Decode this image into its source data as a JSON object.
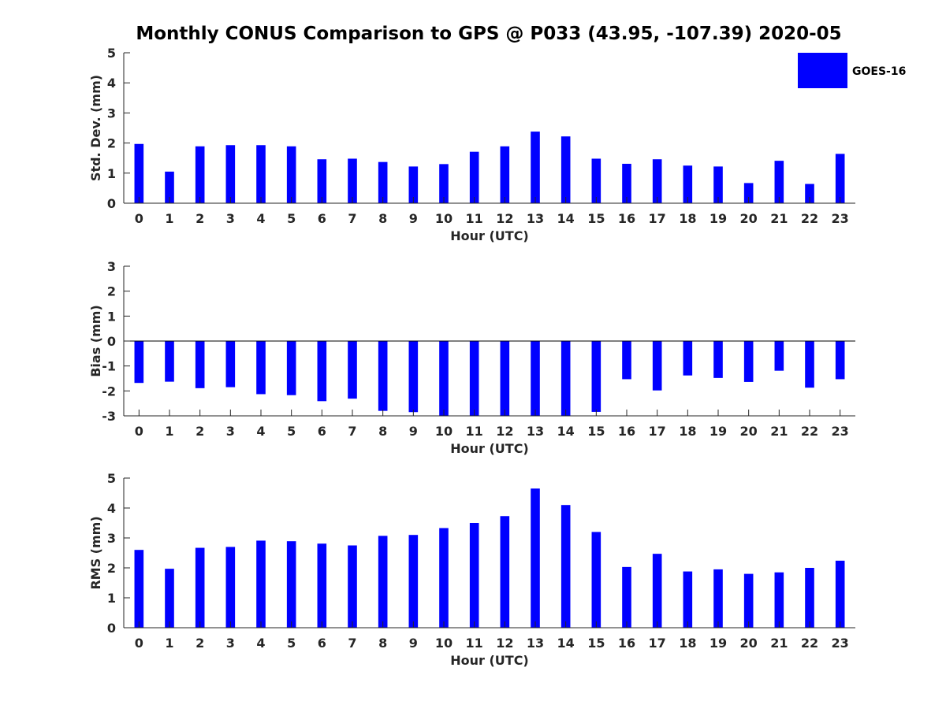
{
  "title": "Monthly CONUS Comparison to GPS @ P033 (43.95, -107.39) 2020-05",
  "legend": {
    "label": "GOES-16",
    "position": "top-right"
  },
  "colors": {
    "bar": "#0000ff",
    "axis": "#262626"
  },
  "chart_data": [
    {
      "type": "bar",
      "categories": [
        "0",
        "1",
        "2",
        "3",
        "4",
        "5",
        "6",
        "7",
        "8",
        "9",
        "10",
        "11",
        "12",
        "13",
        "14",
        "15",
        "16",
        "17",
        "18",
        "19",
        "20",
        "21",
        "22",
        "23"
      ],
      "series": [
        {
          "name": "GOES-16",
          "values": [
            1.97,
            1.05,
            1.89,
            1.93,
            1.93,
            1.89,
            1.46,
            1.48,
            1.37,
            1.22,
            1.3,
            1.71,
            1.89,
            2.38,
            2.22,
            1.48,
            1.31,
            1.46,
            1.25,
            1.22,
            0.67,
            1.41,
            0.64,
            1.64
          ]
        }
      ],
      "xlabel": "Hour (UTC)",
      "ylabel": "Std. Dev. (mm)",
      "ylim": [
        0,
        5
      ],
      "yticks": [
        "0",
        "1",
        "2",
        "3",
        "4",
        "5"
      ],
      "grid": false
    },
    {
      "type": "bar",
      "categories": [
        "0",
        "1",
        "2",
        "3",
        "4",
        "5",
        "6",
        "7",
        "8",
        "9",
        "10",
        "11",
        "12",
        "13",
        "14",
        "15",
        "16",
        "17",
        "18",
        "19",
        "20",
        "21",
        "22",
        "23"
      ],
      "series": [
        {
          "name": "GOES-16",
          "values": [
            -1.68,
            -1.63,
            -1.89,
            -1.85,
            -2.13,
            -2.17,
            -2.41,
            -2.31,
            -2.8,
            -2.85,
            -3.0,
            -3.0,
            -3.0,
            -3.0,
            -3.0,
            -2.84,
            -1.53,
            -1.98,
            -1.38,
            -1.48,
            -1.64,
            -1.19,
            -1.87,
            -1.53
          ]
        }
      ],
      "xlabel": "Hour (UTC)",
      "ylabel": "Bias (mm)",
      "ylim": [
        -3,
        3
      ],
      "yticks": [
        "-3",
        "-2",
        "-1",
        "0",
        "1",
        "2",
        "3"
      ],
      "grid": false
    },
    {
      "type": "bar",
      "categories": [
        "0",
        "1",
        "2",
        "3",
        "4",
        "5",
        "6",
        "7",
        "8",
        "9",
        "10",
        "11",
        "12",
        "13",
        "14",
        "15",
        "16",
        "17",
        "18",
        "19",
        "20",
        "21",
        "22",
        "23"
      ],
      "series": [
        {
          "name": "GOES-16",
          "values": [
            2.6,
            1.97,
            2.67,
            2.7,
            2.91,
            2.89,
            2.81,
            2.75,
            3.07,
            3.1,
            3.33,
            3.5,
            3.73,
            4.65,
            4.1,
            3.2,
            2.03,
            2.47,
            1.88,
            1.95,
            1.8,
            1.85,
            2.0,
            2.24
          ]
        }
      ],
      "xlabel": "Hour (UTC)",
      "ylabel": "RMS (mm)",
      "ylim": [
        0,
        5
      ],
      "yticks": [
        "0",
        "1",
        "2",
        "3",
        "4",
        "5"
      ],
      "grid": false
    }
  ]
}
